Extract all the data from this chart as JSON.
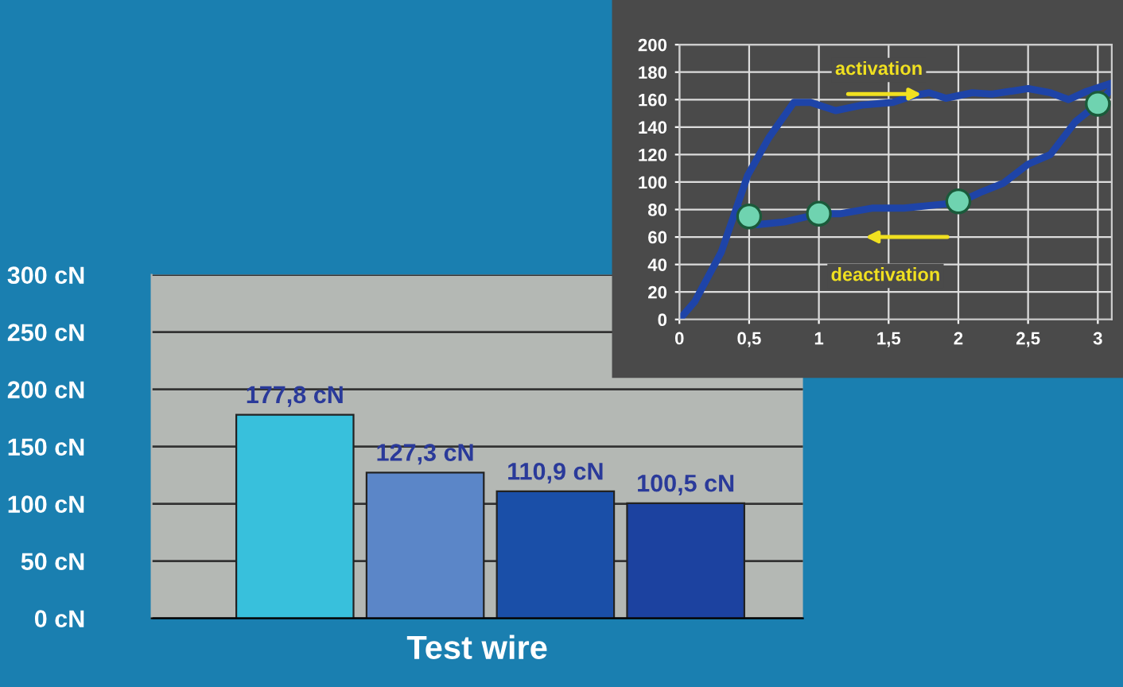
{
  "chart_data": [
    {
      "type": "bar",
      "xlabel": "Test wire",
      "categories": [
        null,
        null,
        null,
        null
      ],
      "values": [
        177.8,
        127.3,
        110.9,
        100.5
      ],
      "colors": [
        "#38c0dc",
        "#5b86c8",
        "#1a4fa8",
        "#1c42a0"
      ],
      "value_labels": [
        "177,8 cN",
        "127,3 cN",
        "110,9 cN",
        "100,5 cN"
      ],
      "ylim": [
        0,
        300
      ],
      "yticks": [
        {
          "value": 0,
          "label": "0 cN"
        },
        {
          "value": 50,
          "label": "50 cN"
        },
        {
          "value": 100,
          "label": "100 cN"
        },
        {
          "value": 150,
          "label": "150 cN"
        },
        {
          "value": 200,
          "label": "200 cN"
        },
        {
          "value": 250,
          "label": "250 cN"
        },
        {
          "value": 300,
          "label": "300 cN"
        }
      ],
      "grid": "y"
    },
    {
      "type": "line",
      "xlim": [
        0,
        3.1
      ],
      "ylim": [
        0,
        200
      ],
      "xticks": [
        0,
        {
          "value": 0.5,
          "label": "0,5"
        },
        1,
        {
          "value": 1.5,
          "label": "1,5"
        },
        2,
        {
          "value": 2.5,
          "label": "2,5"
        },
        3
      ],
      "yticks": [
        0,
        20,
        40,
        60,
        80,
        100,
        120,
        140,
        160,
        180,
        200
      ],
      "grid": true,
      "marker": "none",
      "line_style": "solid",
      "series": [
        {
          "color": "#1e44a8",
          "x": [
            0,
            0.11,
            0.3,
            0.49,
            0.64,
            0.82,
            0.94,
            1.12,
            1.31,
            1.53,
            1.68,
            1.79,
            1.91,
            2.1,
            2.24,
            2.5,
            2.66,
            2.79,
            2.92,
            3.1
          ],
          "values": [
            0,
            13,
            49,
            105,
            132,
            158,
            158,
            152,
            156,
            158,
            163,
            165,
            161,
            165,
            164,
            168,
            165,
            160,
            166,
            172
          ]
        },
        {
          "color": "#1e44a8",
          "x": [
            0.42,
            0.49,
            0.56,
            0.75,
            1.01,
            1.16,
            1.38,
            1.61,
            1.8,
            2.0,
            2.17,
            2.32,
            2.5,
            2.66,
            2.84,
            3.0,
            3.1
          ],
          "values": [
            82,
            75,
            69,
            71,
            77,
            77,
            81,
            81,
            83,
            85,
            93,
            99,
            113,
            120,
            144,
            157,
            168
          ]
        },
        {
          "type": "scatter",
          "color": "#6fd3b0",
          "marker": "circle",
          "x": [
            0.5,
            1,
            2,
            3
          ],
          "values": [
            75,
            77,
            86,
            157
          ]
        }
      ],
      "annotations": [
        "activation",
        "deactivation"
      ]
    }
  ]
}
